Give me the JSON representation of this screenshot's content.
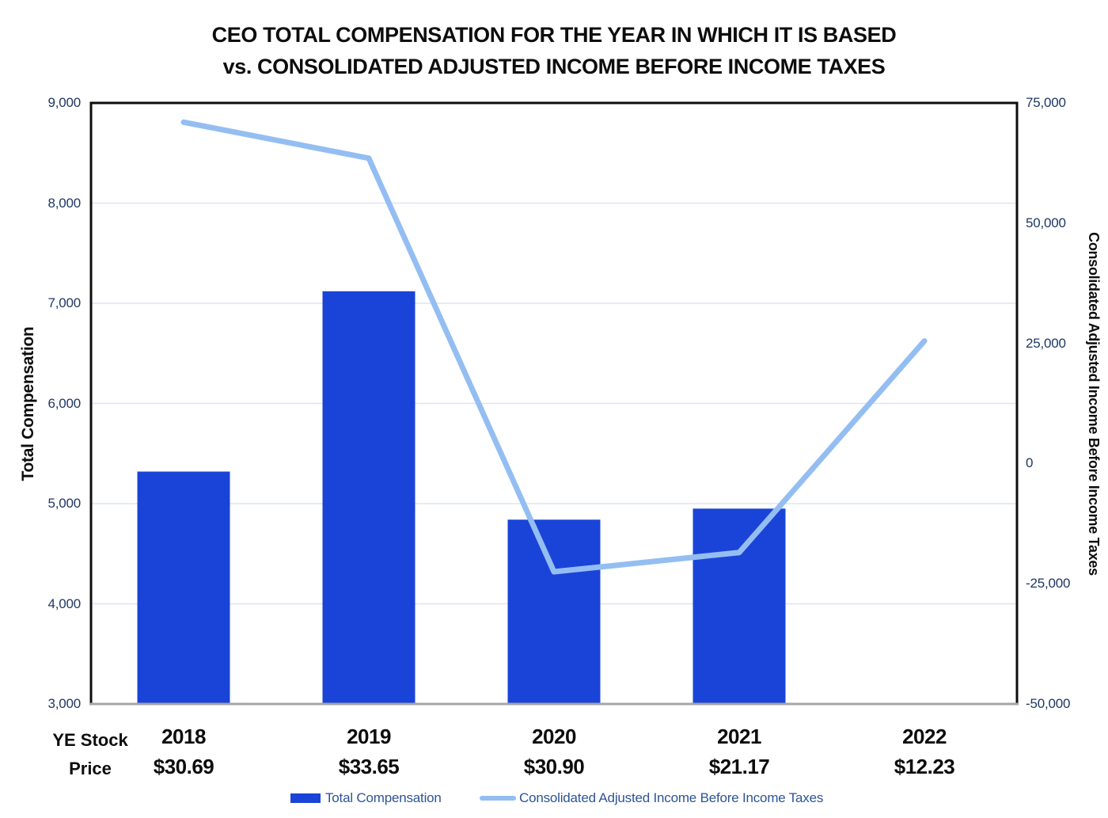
{
  "title": {
    "line1": "CEO TOTAL COMPENSATION FOR THE YEAR IN WHICH IT IS BASED",
    "line2": "vs. CONSOLIDATED ADJUSTED INCOME BEFORE INCOME TAXES"
  },
  "chart_data": {
    "type": "bar",
    "subtype": "combo-bar-line-dual-axis",
    "categories": [
      "2018",
      "2019",
      "2020",
      "2021",
      "2022"
    ],
    "series": [
      {
        "name": "Total Compensation",
        "type": "bar",
        "axis": "left",
        "color": "#1a44d8",
        "values": [
          5320,
          7120,
          4840,
          4950,
          null
        ]
      },
      {
        "name": "Consolidated Adjusted Income Before Income Taxes",
        "type": "line",
        "axis": "right",
        "color": "#94bef2",
        "values": [
          71000,
          63500,
          -22500,
          -18500,
          25500
        ]
      }
    ],
    "left_axis": {
      "label": "Total Compensation",
      "min": 3000,
      "max": 9000,
      "step": 1000,
      "ticks": [
        "9,000",
        "8,000",
        "7,000",
        "6,000",
        "5,000",
        "4,000",
        "3,000"
      ]
    },
    "right_axis": {
      "label": "Consolidated Adjusted Income Before Income Taxes",
      "min": -50000,
      "max": 75000,
      "step": 25000,
      "ticks": [
        "75,000",
        "50,000",
        "25,000",
        "0",
        "-25,000",
        "-50,000"
      ]
    },
    "x_axis": {
      "row_label_line1": "YE Stock",
      "row_label_line2": "Price",
      "stock_prices": [
        "$30.69",
        "$33.65",
        "$30.90",
        "$21.17",
        "$12.23"
      ]
    },
    "legend": {
      "position": "bottom",
      "items": [
        "Total Compensation",
        "Consolidated Adjusted Income Before Income Taxes"
      ]
    },
    "colors": {
      "grid": "#dce6f1",
      "plot_border": "#0d0d0d",
      "bottom_axis": "#a6a6a6",
      "tick_text": "#1f3864",
      "legend_text": "#2e5496"
    },
    "layout_hints": {
      "grid": "horizontal-left-axis-steps",
      "bars_baseline": 3000
    }
  }
}
